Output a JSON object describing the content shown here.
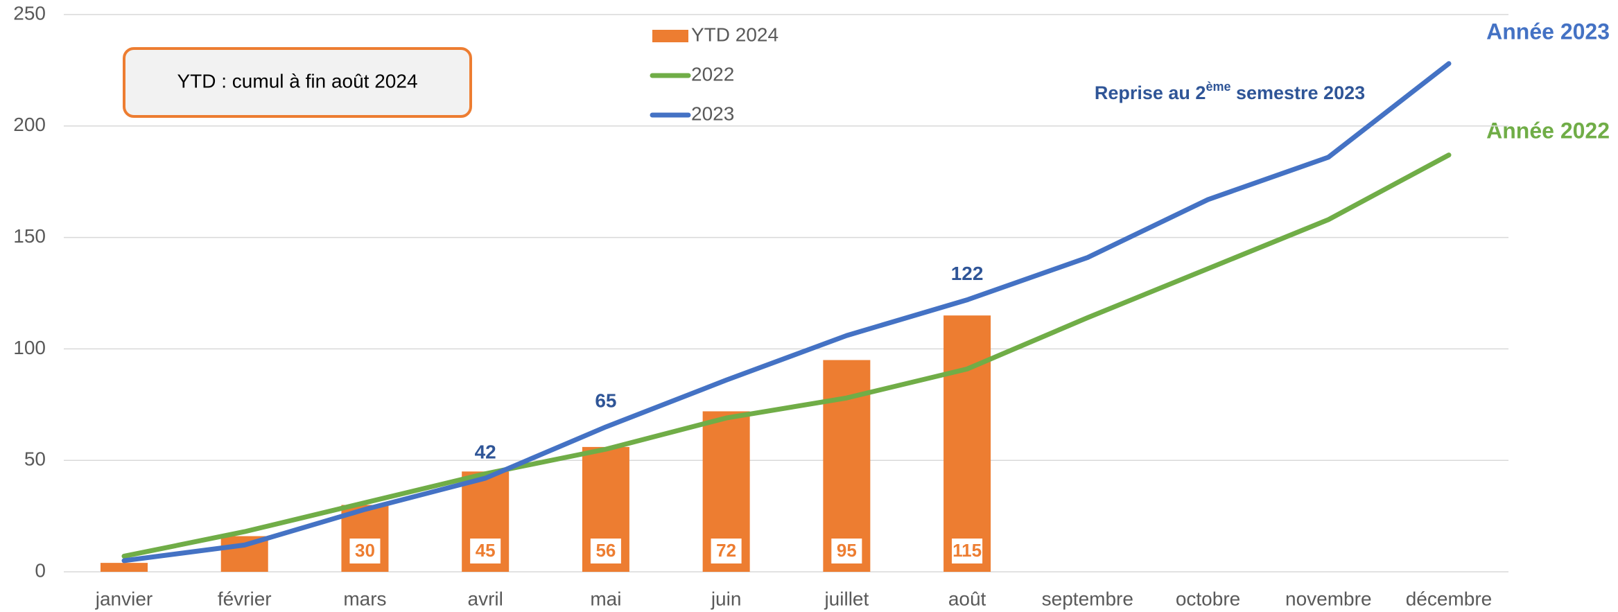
{
  "chart_data": {
    "type": "bar_line",
    "categories": [
      "janvier",
      "février",
      "mars",
      "avril",
      "mai",
      "juin",
      "juillet",
      "août",
      "septembre",
      "octobre",
      "novembre",
      "décembre"
    ],
    "series": [
      {
        "name": "YTD 2024",
        "type": "bar",
        "color": "#ed7d31",
        "values": [
          4,
          16,
          30,
          45,
          56,
          72,
          95,
          115,
          null,
          null,
          null,
          null
        ],
        "value_labels": [
          null,
          null,
          "30",
          "45",
          "56",
          "72",
          "95",
          "115",
          null,
          null,
          null,
          null
        ]
      },
      {
        "name": "2022",
        "type": "line",
        "color": "#70ad47",
        "values": [
          7,
          18,
          31,
          44,
          55,
          69,
          78,
          91,
          114,
          136,
          158,
          187
        ]
      },
      {
        "name": "2023",
        "type": "line",
        "color": "#4472c4",
        "values": [
          5,
          12,
          28,
          42,
          65,
          86,
          106,
          122,
          141,
          167,
          186,
          228
        ],
        "value_labels": [
          null,
          null,
          null,
          "42",
          "65",
          null,
          null,
          "122",
          null,
          null,
          null,
          null
        ]
      }
    ],
    "ylim": [
      0,
      250
    ],
    "yticks": [
      0,
      50,
      100,
      150,
      200,
      250
    ],
    "grid": true,
    "annotations": {
      "box": "YTD : cumul à fin août 2024",
      "reprise": [
        "Reprise au 2",
        "ème",
        " semestre 2023"
      ],
      "year2023": "Année 2023",
      "year2022": "Année 2022"
    }
  }
}
